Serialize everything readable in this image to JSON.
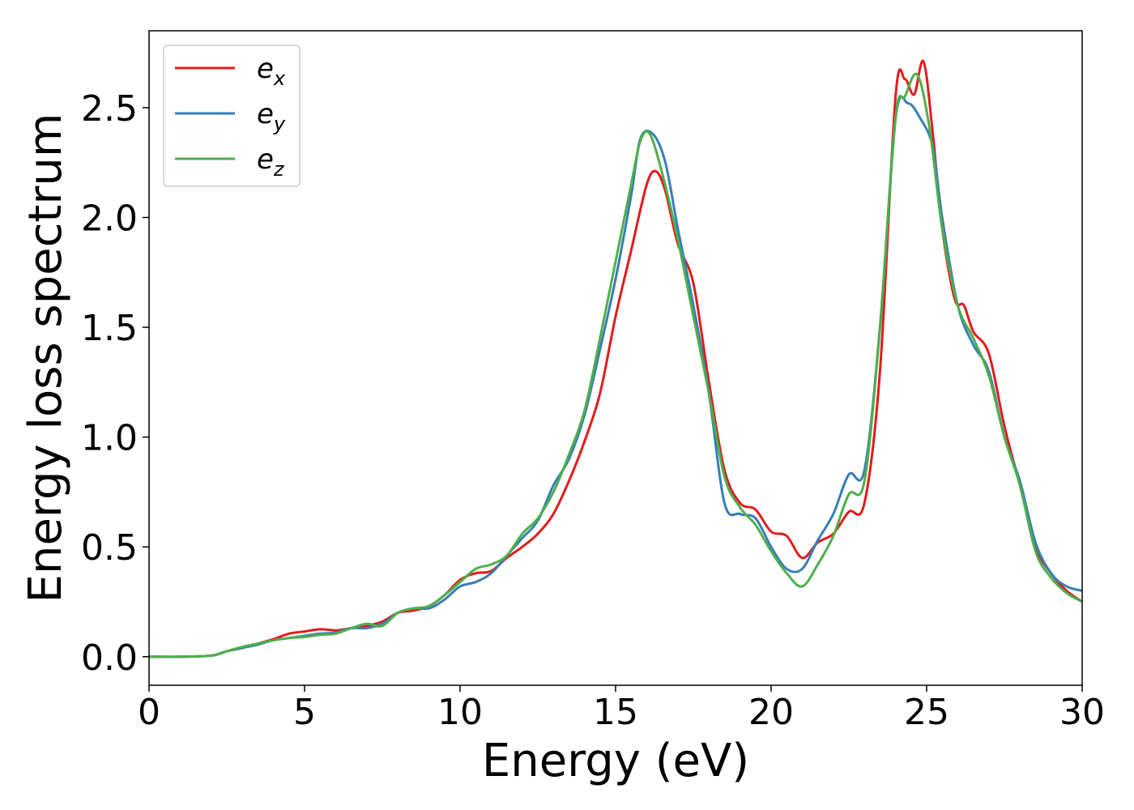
{
  "chart_data": {
    "type": "line",
    "xlabel": "Energy (eV)",
    "ylabel": "Energy loss spectrum",
    "xlim": [
      0,
      30
    ],
    "ylim": [
      -0.13,
      2.85
    ],
    "xticks": [
      0,
      5,
      10,
      15,
      20,
      25,
      30
    ],
    "yticks": [
      0.0,
      0.5,
      1.0,
      1.5,
      2.0,
      2.5
    ],
    "xtick_labels": [
      "0",
      "5",
      "10",
      "15",
      "20",
      "25",
      "30"
    ],
    "ytick_labels": [
      "0.0",
      "0.5",
      "1.0",
      "1.5",
      "2.0",
      "2.5"
    ],
    "grid": false,
    "legend_position": "top-left",
    "series": [
      {
        "name": "e",
        "subscript": "x",
        "color": "#e41a1c",
        "points": [
          [
            0,
            0
          ],
          [
            1,
            0
          ],
          [
            2,
            0.005
          ],
          [
            2.5,
            0.025
          ],
          [
            3,
            0.04
          ],
          [
            3.5,
            0.06
          ],
          [
            4,
            0.08
          ],
          [
            4.5,
            0.105
          ],
          [
            5,
            0.115
          ],
          [
            5.5,
            0.125
          ],
          [
            6,
            0.12
          ],
          [
            6.5,
            0.13
          ],
          [
            7,
            0.14
          ],
          [
            7.5,
            0.16
          ],
          [
            8,
            0.2
          ],
          [
            8.5,
            0.21
          ],
          [
            9,
            0.23
          ],
          [
            9.5,
            0.28
          ],
          [
            10,
            0.35
          ],
          [
            10.5,
            0.38
          ],
          [
            11,
            0.39
          ],
          [
            11.5,
            0.45
          ],
          [
            12,
            0.5
          ],
          [
            12.5,
            0.56
          ],
          [
            13,
            0.65
          ],
          [
            13.5,
            0.8
          ],
          [
            14,
            0.98
          ],
          [
            14.5,
            1.2
          ],
          [
            15,
            1.55
          ],
          [
            15.5,
            1.85
          ],
          [
            16,
            2.15
          ],
          [
            16.3,
            2.21
          ],
          [
            16.6,
            2.12
          ],
          [
            17,
            1.88
          ],
          [
            17.5,
            1.7
          ],
          [
            18,
            1.25
          ],
          [
            18.5,
            0.85
          ],
          [
            19,
            0.7
          ],
          [
            19.5,
            0.67
          ],
          [
            20,
            0.57
          ],
          [
            20.5,
            0.55
          ],
          [
            21,
            0.45
          ],
          [
            21.5,
            0.52
          ],
          [
            22,
            0.56
          ],
          [
            22.5,
            0.66
          ],
          [
            23,
            0.7
          ],
          [
            23.5,
            1.3
          ],
          [
            24,
            2.55
          ],
          [
            24.3,
            2.63
          ],
          [
            24.6,
            2.56
          ],
          [
            24.9,
            2.71
          ],
          [
            25.2,
            2.38
          ],
          [
            25.5,
            1.95
          ],
          [
            25.9,
            1.63
          ],
          [
            26.2,
            1.6
          ],
          [
            26.5,
            1.48
          ],
          [
            27,
            1.38
          ],
          [
            27.5,
            1.05
          ],
          [
            28,
            0.78
          ],
          [
            28.5,
            0.5
          ],
          [
            29,
            0.38
          ],
          [
            29.5,
            0.3
          ],
          [
            30,
            0.25
          ]
        ]
      },
      {
        "name": "e",
        "subscript": "y",
        "color": "#377eb8",
        "points": [
          [
            0,
            0
          ],
          [
            1,
            0
          ],
          [
            2,
            0.005
          ],
          [
            2.5,
            0.025
          ],
          [
            3,
            0.04
          ],
          [
            3.5,
            0.055
          ],
          [
            4,
            0.075
          ],
          [
            4.5,
            0.085
          ],
          [
            5,
            0.095
          ],
          [
            5.5,
            0.105
          ],
          [
            6,
            0.11
          ],
          [
            6.5,
            0.13
          ],
          [
            7,
            0.13
          ],
          [
            7.5,
            0.15
          ],
          [
            8,
            0.2
          ],
          [
            8.5,
            0.22
          ],
          [
            9,
            0.22
          ],
          [
            9.5,
            0.26
          ],
          [
            10,
            0.32
          ],
          [
            10.5,
            0.34
          ],
          [
            11,
            0.38
          ],
          [
            11.5,
            0.46
          ],
          [
            12,
            0.54
          ],
          [
            12.5,
            0.62
          ],
          [
            13,
            0.78
          ],
          [
            13.5,
            0.9
          ],
          [
            14,
            1.1
          ],
          [
            14.5,
            1.4
          ],
          [
            15,
            1.72
          ],
          [
            15.5,
            2.1
          ],
          [
            15.8,
            2.36
          ],
          [
            16.2,
            2.38
          ],
          [
            16.6,
            2.25
          ],
          [
            17,
            1.95
          ],
          [
            17.5,
            1.6
          ],
          [
            18,
            1.2
          ],
          [
            18.5,
            0.7
          ],
          [
            19,
            0.65
          ],
          [
            19.5,
            0.63
          ],
          [
            20,
            0.5
          ],
          [
            20.5,
            0.4
          ],
          [
            21,
            0.4
          ],
          [
            21.5,
            0.53
          ],
          [
            22,
            0.65
          ],
          [
            22.5,
            0.83
          ],
          [
            23,
            0.85
          ],
          [
            23.5,
            1.5
          ],
          [
            24,
            2.45
          ],
          [
            24.4,
            2.52
          ],
          [
            24.8,
            2.45
          ],
          [
            25.2,
            2.32
          ],
          [
            25.5,
            2.0
          ],
          [
            26,
            1.6
          ],
          [
            26.5,
            1.42
          ],
          [
            27,
            1.3
          ],
          [
            27.5,
            1.0
          ],
          [
            28,
            0.8
          ],
          [
            28.5,
            0.52
          ],
          [
            29,
            0.38
          ],
          [
            29.5,
            0.32
          ],
          [
            30,
            0.3
          ]
        ]
      },
      {
        "name": "e",
        "subscript": "z",
        "color": "#4daf4a",
        "points": [
          [
            0,
            0
          ],
          [
            1,
            0
          ],
          [
            2,
            0.005
          ],
          [
            2.5,
            0.025
          ],
          [
            3,
            0.045
          ],
          [
            3.5,
            0.06
          ],
          [
            4,
            0.075
          ],
          [
            4.5,
            0.085
          ],
          [
            5,
            0.09
          ],
          [
            5.5,
            0.1
          ],
          [
            6,
            0.105
          ],
          [
            6.5,
            0.13
          ],
          [
            7,
            0.15
          ],
          [
            7.5,
            0.14
          ],
          [
            8,
            0.2
          ],
          [
            8.5,
            0.22
          ],
          [
            9,
            0.23
          ],
          [
            9.5,
            0.28
          ],
          [
            10,
            0.34
          ],
          [
            10.5,
            0.4
          ],
          [
            11,
            0.42
          ],
          [
            11.5,
            0.46
          ],
          [
            12,
            0.56
          ],
          [
            12.5,
            0.63
          ],
          [
            13,
            0.75
          ],
          [
            13.5,
            0.92
          ],
          [
            14,
            1.12
          ],
          [
            14.5,
            1.45
          ],
          [
            15,
            1.8
          ],
          [
            15.5,
            2.15
          ],
          [
            15.8,
            2.35
          ],
          [
            16.1,
            2.38
          ],
          [
            16.5,
            2.2
          ],
          [
            17,
            1.9
          ],
          [
            17.5,
            1.55
          ],
          [
            18,
            1.2
          ],
          [
            18.5,
            0.82
          ],
          [
            19,
            0.68
          ],
          [
            19.5,
            0.6
          ],
          [
            20,
            0.48
          ],
          [
            20.5,
            0.38
          ],
          [
            21,
            0.32
          ],
          [
            21.5,
            0.42
          ],
          [
            22,
            0.55
          ],
          [
            22.5,
            0.74
          ],
          [
            23,
            0.8
          ],
          [
            23.5,
            1.5
          ],
          [
            24,
            2.45
          ],
          [
            24.3,
            2.55
          ],
          [
            24.7,
            2.65
          ],
          [
            25.1,
            2.4
          ],
          [
            25.5,
            1.95
          ],
          [
            26,
            1.6
          ],
          [
            26.5,
            1.45
          ],
          [
            27,
            1.28
          ],
          [
            27.5,
            1.0
          ],
          [
            28,
            0.78
          ],
          [
            28.5,
            0.48
          ],
          [
            29,
            0.36
          ],
          [
            29.5,
            0.29
          ],
          [
            30,
            0.25
          ]
        ]
      }
    ]
  }
}
